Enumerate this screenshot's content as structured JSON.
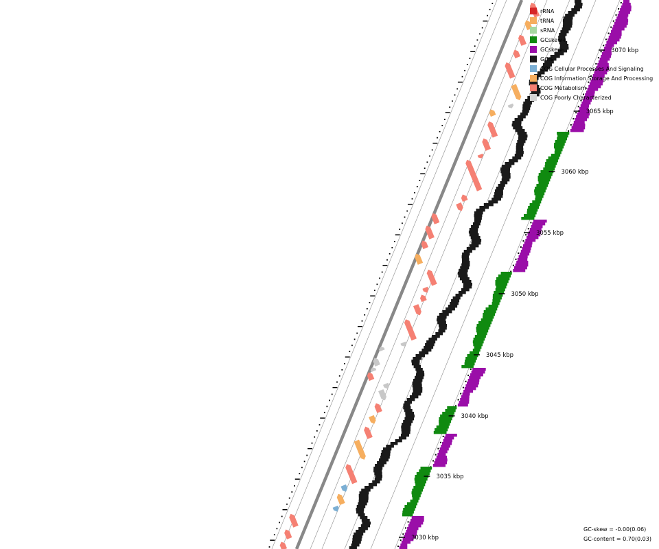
{
  "legend": [
    {
      "label": "rRNA",
      "color": "#d62728"
    },
    {
      "label": "tRNA",
      "color": "#f6ae5f"
    },
    {
      "label": "sRNA",
      "color": "#a6d8a0"
    },
    {
      "label": "GCskew+",
      "color": "#108a10"
    },
    {
      "label": "GCskew-",
      "color": "#9a0ea8"
    },
    {
      "label": "GC%",
      "color": "#1a1a1a"
    },
    {
      "label": "COG Cellular Processes And Signaling",
      "color": "#7bafd4"
    },
    {
      "label": "COG Information Storage And Processing",
      "color": "#f6ae5f"
    },
    {
      "label": "COG Metabolism",
      "color": "#f58073"
    },
    {
      "label": "COG Poorly Characterized",
      "color": "#d3d3d3"
    }
  ],
  "axis": {
    "unit": "kbp",
    "ticks": [
      "3070 kbp",
      "3065 kbp",
      "3060 kbp",
      "3055 kbp",
      "3050 kbp",
      "3045 kbp",
      "3040 kbp",
      "3035 kbp",
      "3030 kbp"
    ]
  },
  "stats": {
    "gc_skew": "GC-skew = -0.00(0.06)",
    "gc_content": "GC-content = 0.70(0.03)"
  },
  "colors": {
    "metabolism": "#f58073",
    "information": "#f6ae5f",
    "cellular": "#7bafd4",
    "poorly": "#c8c8c8",
    "gc_plus": "#108a10",
    "gc_minus": "#9a0ea8",
    "gc_percent": "#1a1a1a",
    "backbone": "#888888"
  }
}
